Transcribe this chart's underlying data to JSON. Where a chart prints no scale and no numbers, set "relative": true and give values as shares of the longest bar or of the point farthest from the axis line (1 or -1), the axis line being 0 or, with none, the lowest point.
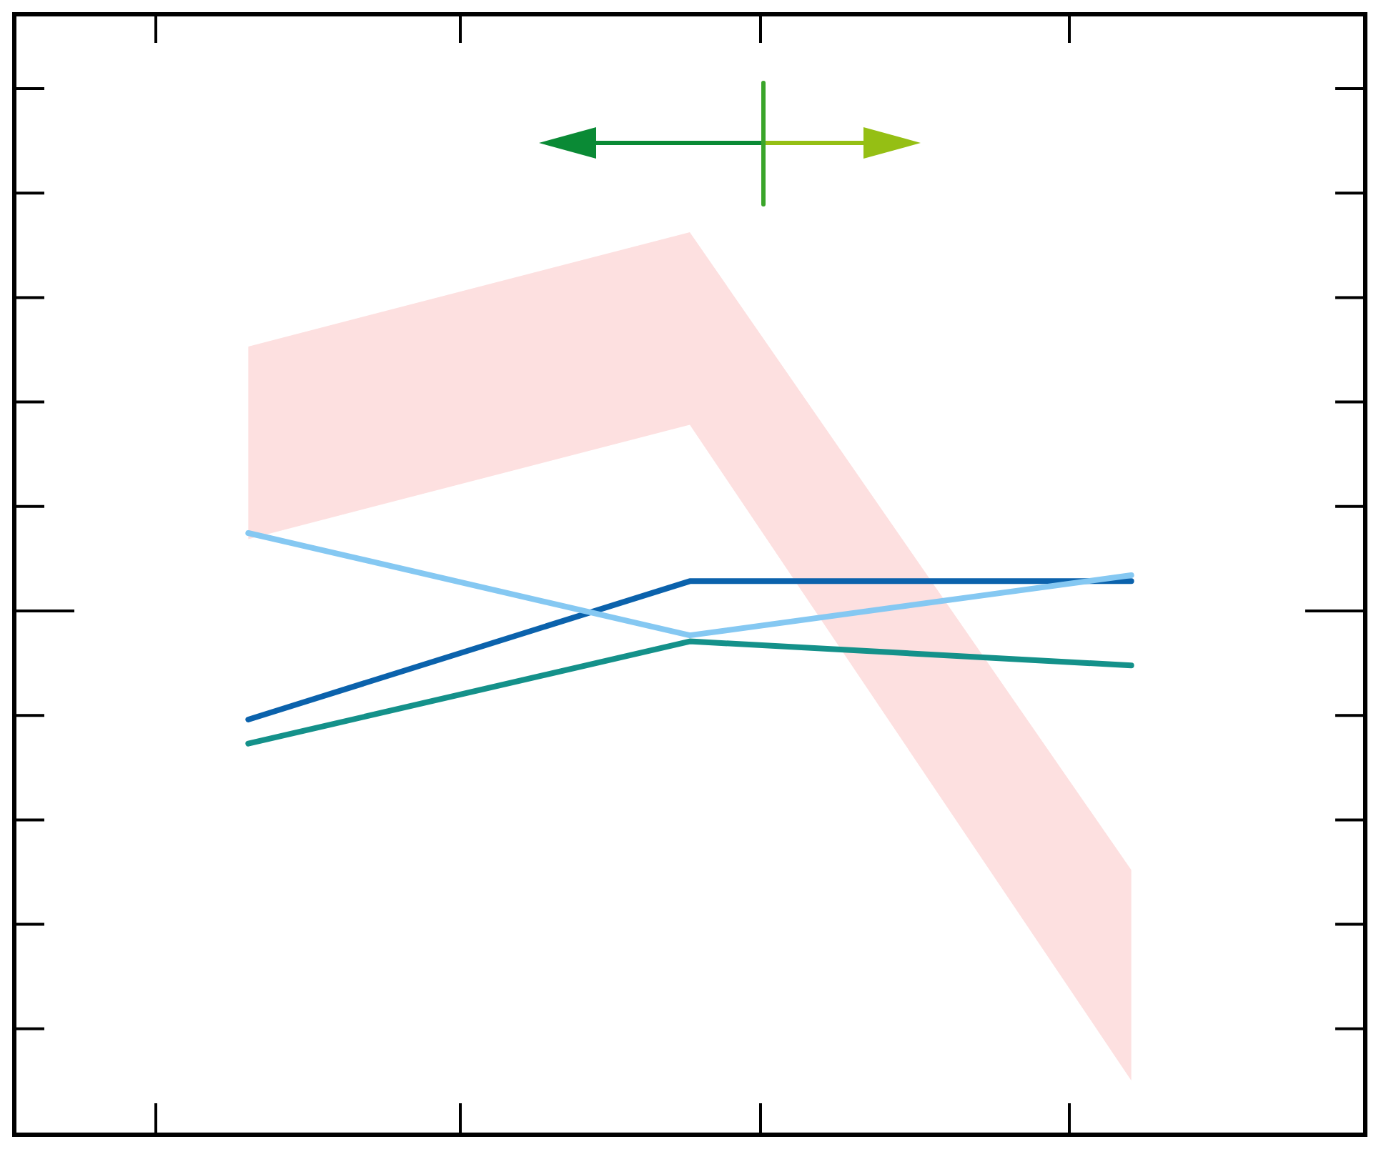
{
  "chart_data": {
    "type": "line",
    "relative": true,
    "categories": [
      null,
      null,
      null
    ],
    "series": [
      {
        "color": "#fde0e0",
        "values": [
          null,
          null,
          null
        ],
        "lower": [
          0.99,
          1.18,
          0.09
        ],
        "upper": [
          1.31,
          1.5,
          0.44
        ]
      },
      {
        "color": "#0b62ac",
        "values": [
          0.69,
          0.92,
          0.92
        ]
      },
      {
        "color": "#14918a",
        "values": [
          0.65,
          0.82,
          0.78
        ]
      },
      {
        "color": "#85c8f2",
        "values": [
          1,
          0.83,
          0.93
        ]
      }
    ]
  }
}
